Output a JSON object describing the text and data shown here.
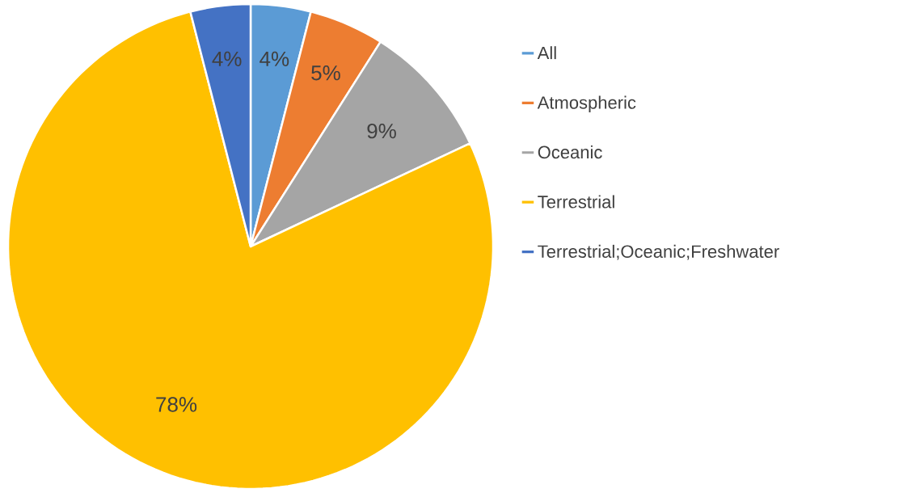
{
  "chart_data": {
    "type": "pie",
    "categories": [
      "All",
      "Atmospheric",
      "Oceanic",
      "Terrestrial",
      "Terrestrial;Oceanic;Freshwater"
    ],
    "values": [
      4,
      5,
      9,
      78,
      4
    ],
    "value_labels": [
      "4%",
      "5%",
      "9%",
      "78%",
      "4%"
    ],
    "colors": [
      "#5b9bd5",
      "#ed7d31",
      "#a5a5a5",
      "#ffc000",
      "#4472c4"
    ],
    "legend": "right"
  }
}
